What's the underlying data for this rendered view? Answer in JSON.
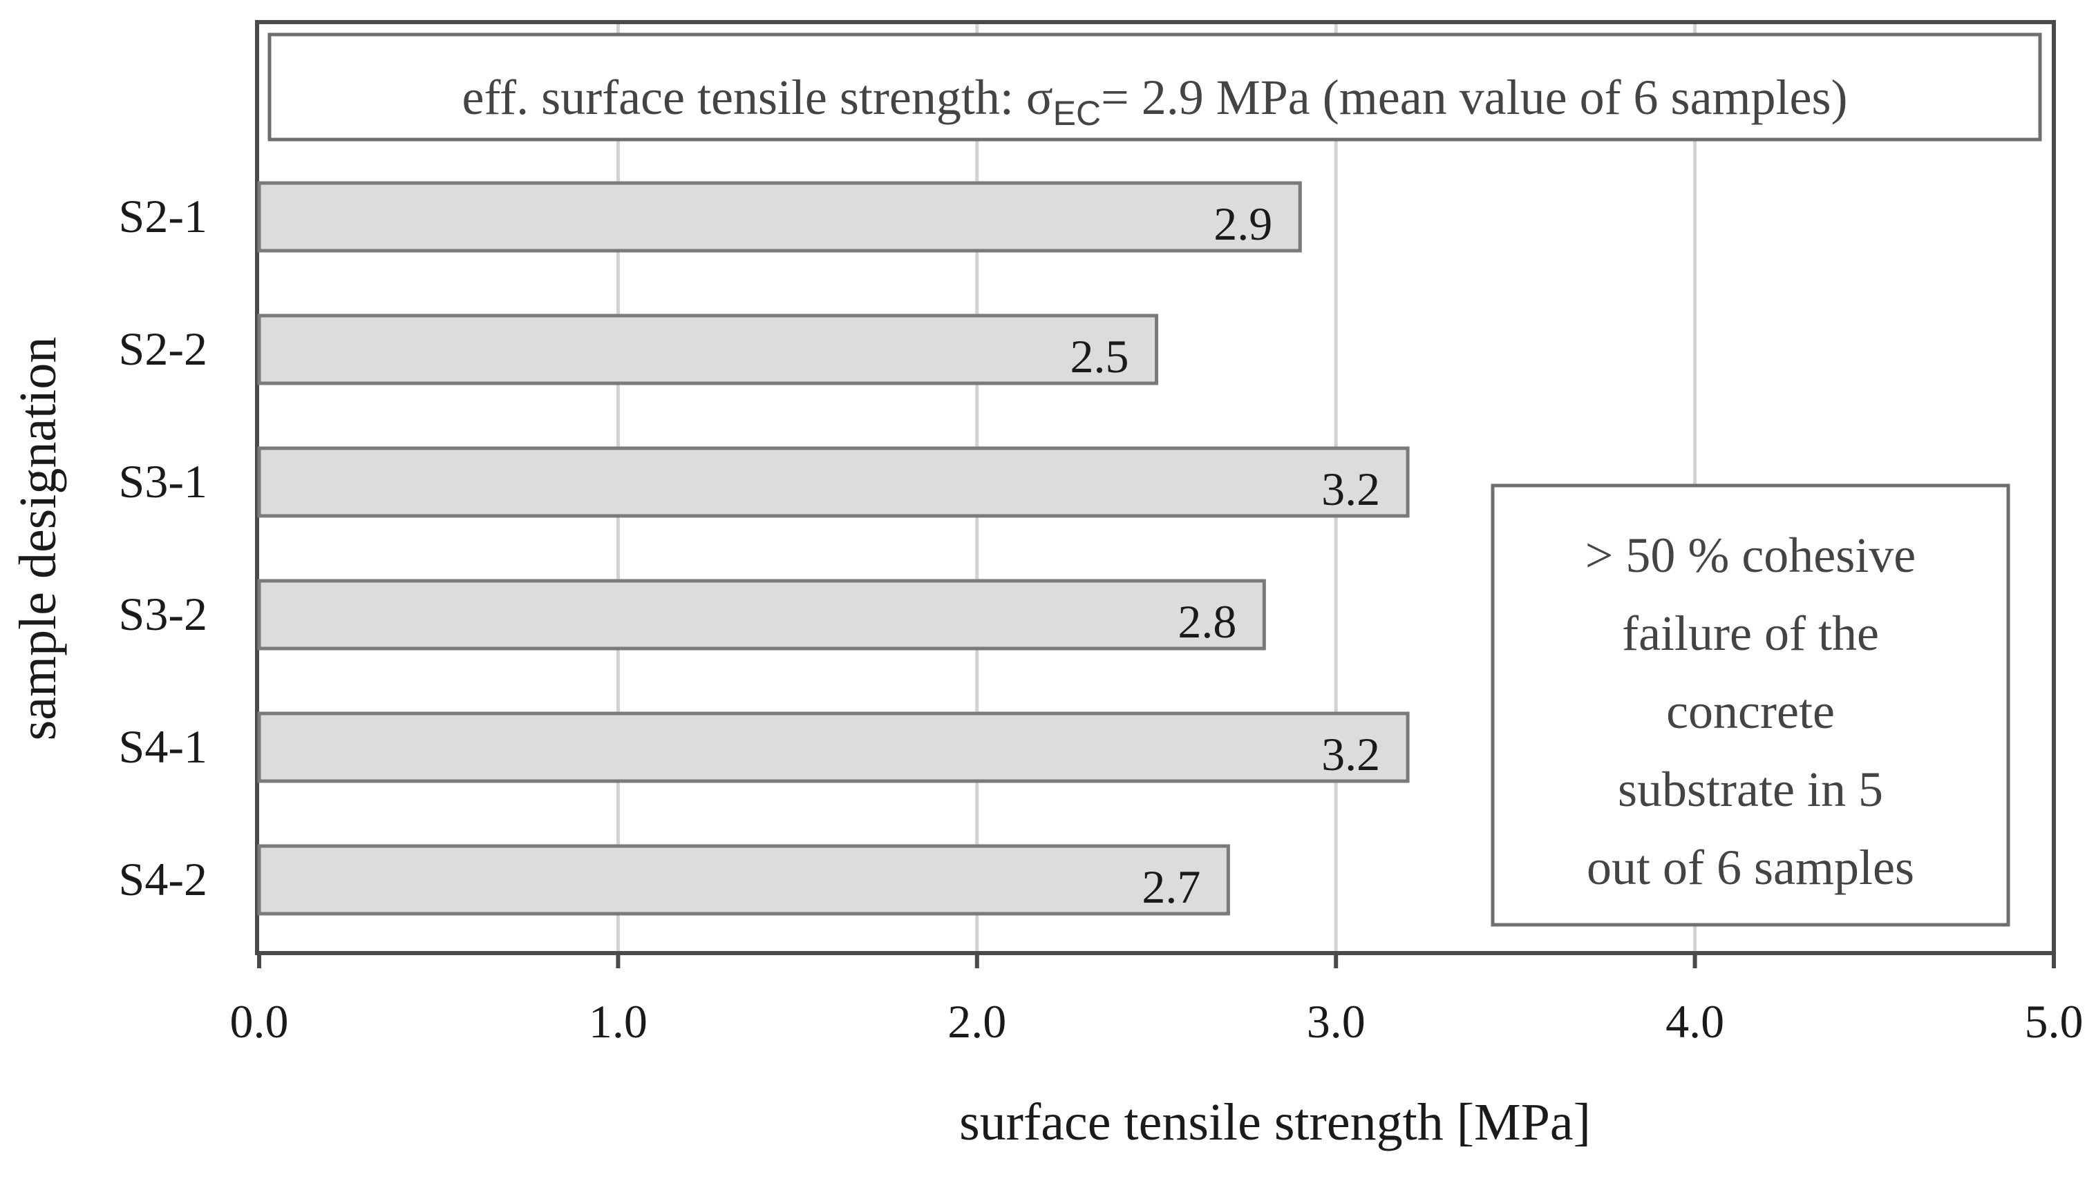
{
  "chart_data": {
    "type": "bar",
    "orientation": "horizontal",
    "categories": [
      "S2-1",
      "S2-2",
      "S3-1",
      "S3-2",
      "S4-1",
      "S4-2"
    ],
    "values": [
      2.9,
      2.5,
      3.2,
      2.8,
      3.2,
      2.7
    ],
    "value_labels": [
      "2.9",
      "2.5",
      "3.2",
      "2.8",
      "3.2",
      "2.7"
    ],
    "xlabel": "surface tensile strength [MPa]",
    "ylabel": "sample designation",
    "xlim": [
      0.0,
      5.0
    ],
    "x_ticks": [
      0,
      1,
      2,
      3,
      4,
      5
    ],
    "x_tick_labels": [
      "0.0",
      "1.0",
      "2.0",
      "3.0",
      "4.0",
      "5.0"
    ],
    "grid": "vertical",
    "bar_color": "#dcdcdc",
    "bar_edge_color": "#7a7a7a",
    "header_box": {
      "prefix": "eff. surface tensile strength: ",
      "sigma": "σ",
      "subscript": "EC",
      "suffix": "= 2.9 MPa",
      "note": "(mean value of 6 samples)"
    },
    "annotation_box": {
      "lines": [
        "> 50 % cohesive",
        "failure of the",
        "concrete",
        "substrate in 5",
        "out of 6 samples"
      ],
      "placement": "bottom-right"
    }
  }
}
